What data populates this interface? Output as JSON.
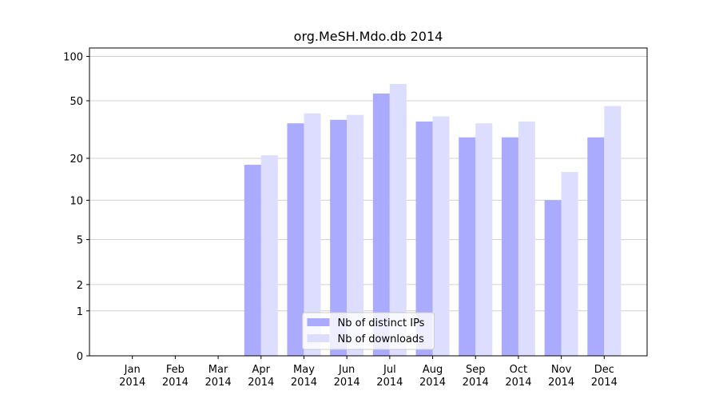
{
  "chart_data": {
    "type": "bar",
    "title": "org.MeSH.Mdo.db 2014",
    "categories": [
      "Jan 2014",
      "Feb 2014",
      "Mar 2014",
      "Apr 2014",
      "May 2014",
      "Jun 2014",
      "Jul 2014",
      "Aug 2014",
      "Sep 2014",
      "Oct 2014",
      "Nov 2014",
      "Dec 2014"
    ],
    "series": [
      {
        "name": "Nb of distinct IPs",
        "color": "#aaaaff",
        "values": [
          0,
          0,
          0,
          18,
          35,
          37,
          56,
          36,
          28,
          28,
          10,
          28
        ]
      },
      {
        "name": "Nb of downloads",
        "color": "#ddddff",
        "values": [
          0,
          0,
          0,
          21,
          41,
          40,
          65,
          39,
          35,
          36,
          16,
          46
        ]
      }
    ],
    "yscale": "log1p",
    "ylim": [
      0,
      114
    ],
    "yticks": [
      0,
      1,
      2,
      5,
      10,
      20,
      50,
      100
    ],
    "grid": true,
    "legend": "lower center"
  }
}
